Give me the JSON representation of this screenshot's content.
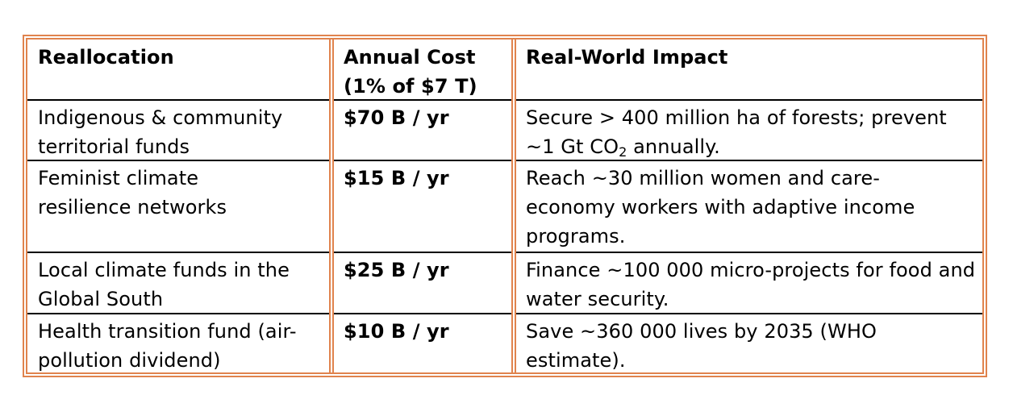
{
  "table": {
    "headers": [
      "Reallocation",
      "Annual Cost (1% of $7 T)",
      "Real-World Impact"
    ],
    "rows": [
      {
        "reallocation": "Indigenous & community territorial funds",
        "cost": "$70 B / yr",
        "impact_part1": "Secure > 400 million ha of forests; prevent ~1 Gt CO",
        "impact_sub": "2",
        "impact_part2": " annually."
      },
      {
        "reallocation": "Feminist climate resilience networks",
        "cost": "$15 B / yr",
        "impact": "Reach ~30 million women and care-economy workers with adaptive income programs."
      },
      {
        "reallocation": "Local climate funds in the Global South",
        "cost": "$25 B / yr",
        "impact": "Finance ~100 000 micro-projects for food and water security."
      },
      {
        "reallocation": "Health transition fund (air-pollution dividend)",
        "cost": "$10 B / yr",
        "impact": "Save ~360 000 lives by 2035 (WHO estimate)."
      }
    ]
  },
  "colors": {
    "border": "#e0834d",
    "row_rule": "#000000"
  }
}
